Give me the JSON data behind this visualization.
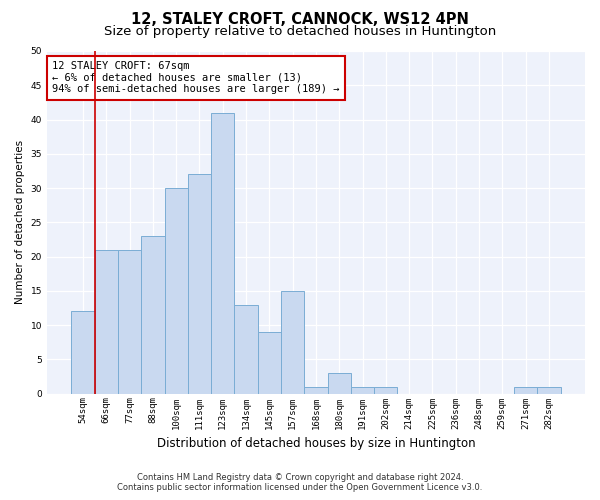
{
  "title": "12, STALEY CROFT, CANNOCK, WS12 4PN",
  "subtitle": "Size of property relative to detached houses in Huntington",
  "xlabel": "Distribution of detached houses by size in Huntington",
  "ylabel": "Number of detached properties",
  "categories": [
    "54sqm",
    "66sqm",
    "77sqm",
    "88sqm",
    "100sqm",
    "111sqm",
    "123sqm",
    "134sqm",
    "145sqm",
    "157sqm",
    "168sqm",
    "180sqm",
    "191sqm",
    "202sqm",
    "214sqm",
    "225sqm",
    "236sqm",
    "248sqm",
    "259sqm",
    "271sqm",
    "282sqm"
  ],
  "values": [
    12,
    21,
    21,
    23,
    30,
    32,
    41,
    13,
    9,
    15,
    1,
    3,
    1,
    1,
    0,
    0,
    0,
    0,
    0,
    1,
    1
  ],
  "bar_color": "#c9d9f0",
  "bar_edge_color": "#7aadd4",
  "ylim": [
    0,
    50
  ],
  "yticks": [
    0,
    5,
    10,
    15,
    20,
    25,
    30,
    35,
    40,
    45,
    50
  ],
  "property_line_idx": 1,
  "property_line_color": "#cc0000",
  "annotation_line1": "12 STALEY CROFT: 67sqm",
  "annotation_line2": "← 6% of detached houses are smaller (13)",
  "annotation_line3": "94% of semi-detached houses are larger (189) →",
  "annotation_box_color": "#cc0000",
  "footer_line1": "Contains HM Land Registry data © Crown copyright and database right 2024.",
  "footer_line2": "Contains public sector information licensed under the Open Government Licence v3.0.",
  "background_color": "#eef2fb",
  "grid_color": "#ffffff",
  "title_fontsize": 10.5,
  "subtitle_fontsize": 9.5,
  "xlabel_fontsize": 8.5,
  "ylabel_fontsize": 7.5,
  "tick_fontsize": 6.5,
  "annotation_fontsize": 7.5,
  "footer_fontsize": 6.0
}
